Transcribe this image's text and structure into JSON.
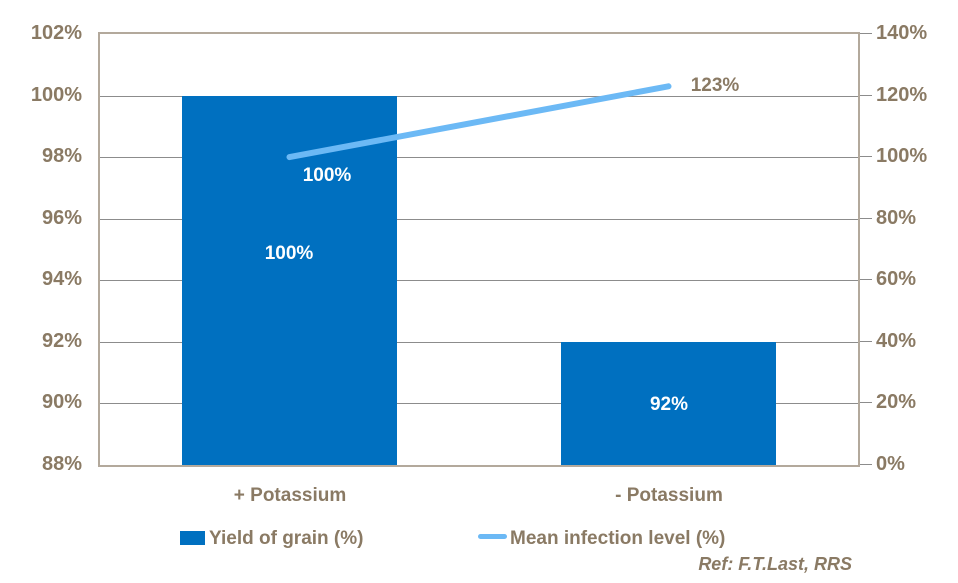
{
  "chart_data": {
    "type": "combo",
    "title": "",
    "categories": [
      "+ Potassium",
      "- Potassium"
    ],
    "series": [
      {
        "name": "Yield of grain (%)",
        "type": "bar",
        "axis": "left",
        "values": [
          100,
          92
        ],
        "labels": [
          "100%",
          "92%"
        ]
      },
      {
        "name": "Mean infection level (%)",
        "type": "line",
        "axis": "right",
        "values": [
          100,
          123
        ],
        "labels": [
          "100%",
          "123%"
        ]
      }
    ],
    "left_axis": {
      "min": 88,
      "max": 102,
      "ticks": [
        "102%",
        "100%",
        "98%",
        "96%",
        "94%",
        "92%",
        "90%",
        "88%"
      ]
    },
    "right_axis": {
      "min": 0,
      "max": 140,
      "ticks": [
        "140%",
        "120%",
        "100%",
        "80%",
        "60%",
        "40%",
        "20%",
        "0%"
      ]
    },
    "grid": true,
    "legend_position": "bottom"
  },
  "legend": {
    "items": [
      {
        "label": "Yield of grain (%)",
        "swatch": "bar"
      },
      {
        "label": "Mean infection level (%)",
        "swatch": "line"
      }
    ]
  },
  "footer": {
    "ref": "Ref: F.T.Last, RRS"
  },
  "colors": {
    "bar": "#0070C0",
    "line": "#6CB9F5",
    "axis_text": "#8A7A64",
    "axis_line": "#B3A99C",
    "gridline": "#8C8C8C",
    "data_label_on_bar": "#FFFFFF"
  }
}
